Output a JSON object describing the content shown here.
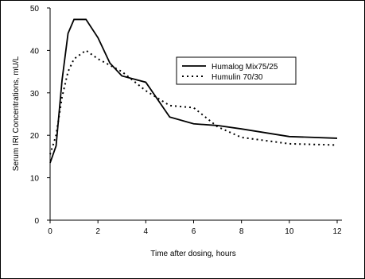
{
  "chart_data": {
    "type": "line",
    "x_label": "Time after dosing, hours",
    "y_label": "Serum IRI Concentrations, mU/L",
    "x": [
      0,
      0.25,
      0.5,
      0.75,
      1,
      1.5,
      2,
      2.5,
      3,
      4,
      5,
      6,
      7,
      8,
      10,
      12
    ],
    "series": [
      {
        "name": "Humalog Mix75/25",
        "color": "#000000",
        "dash": "solid",
        "values": [
          13.5,
          17.5,
          33,
          44,
          47.3,
          47.3,
          43,
          37,
          34,
          32.5,
          24.3,
          22.7,
          22.3,
          21.5,
          19.7,
          19.3
        ]
      },
      {
        "name": "Humulin 70/30",
        "color": "#000000",
        "dash": "dotted",
        "values": [
          15.5,
          20,
          29,
          35,
          38,
          40,
          38,
          36.5,
          35,
          30.5,
          27,
          26.5,
          22,
          19.5,
          18,
          17.7
        ]
      }
    ],
    "xlim": [
      0,
      12
    ],
    "xticks": [
      0,
      2,
      4,
      6,
      8,
      10,
      12
    ],
    "ylim": [
      0,
      50
    ],
    "yticks": [
      0,
      10,
      20,
      30,
      40,
      50
    ],
    "grid": false
  }
}
